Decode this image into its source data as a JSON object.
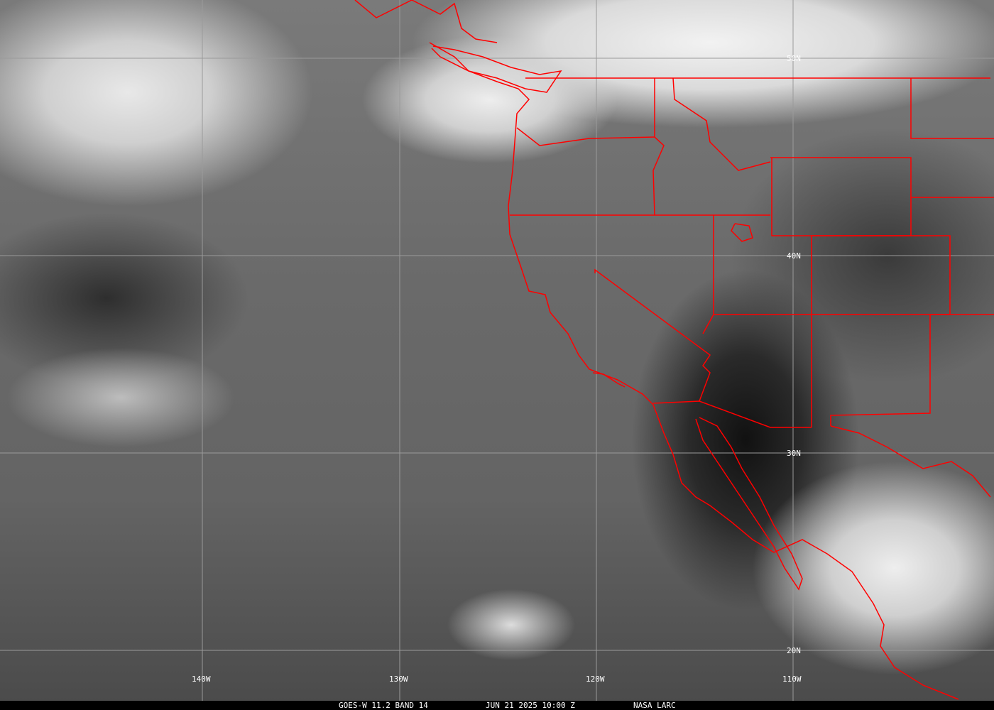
{
  "image": {
    "description_type": "satellite infrared imagery",
    "border_color": "#ff0000",
    "grid_color": "#a0a0a0"
  },
  "grid": {
    "latitudes": [
      "50N",
      "40N",
      "30N",
      "20N"
    ],
    "longitudes": [
      "140W",
      "130W",
      "120W",
      "110W"
    ]
  },
  "caption": {
    "product": "GOES-W 11.2 BAND 14",
    "datetime": "JUN 21 2025 10:00 Z",
    "source": "NASA LARC"
  }
}
